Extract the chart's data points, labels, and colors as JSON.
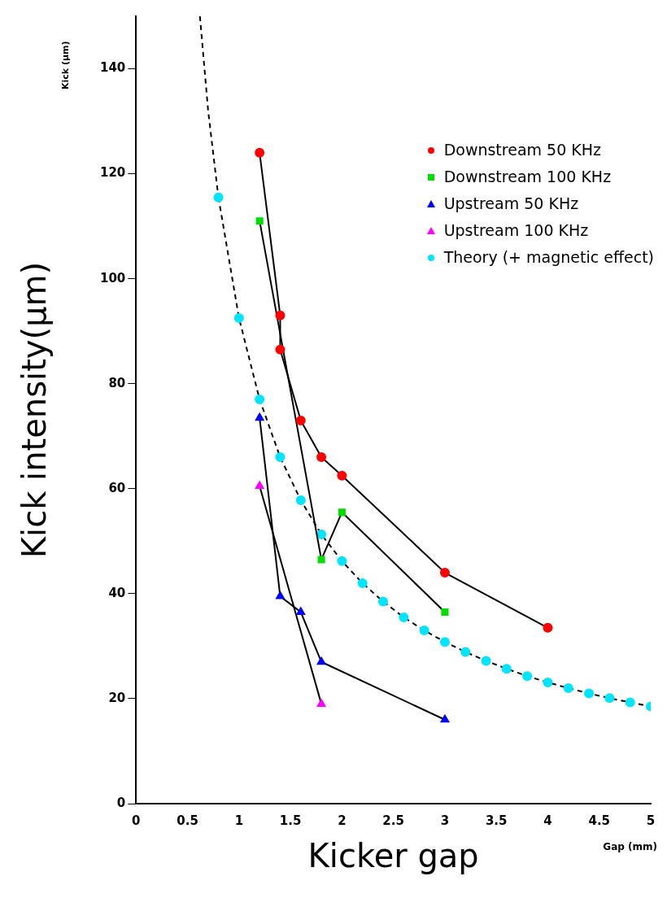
{
  "chart_data": {
    "type": "line",
    "xlabel": "Kicker gap",
    "ylabel": "Kick intensity(μm)",
    "annotations": [
      "Kick (μm)",
      "Gap (mm)"
    ],
    "xlim": [
      0,
      5
    ],
    "xticks": [
      0,
      0.5,
      1,
      1.5,
      2,
      2.5,
      3,
      3.5,
      4,
      4.5,
      5
    ],
    "ylim": [
      0,
      150
    ],
    "yticks": [
      0,
      20,
      40,
      60,
      80,
      100,
      120,
      140
    ],
    "grid": false,
    "legend": "top right",
    "series": [
      {
        "name": "Downstream 50 KHz",
        "color": "#ff0000",
        "marker": "circle",
        "line_style": "solid",
        "x": [
          1.2,
          1.4,
          1.4,
          1.6,
          1.8,
          2,
          3,
          4
        ],
        "values": [
          124,
          93,
          86.5,
          73,
          66,
          62.5,
          44,
          33.5
        ]
      },
      {
        "name": "Downstream 100 KHz",
        "color": "#00dd00",
        "marker": "square",
        "line_style": "solid",
        "x": [
          1.2,
          1.8,
          2,
          3
        ],
        "values": [
          111,
          46.5,
          55.5,
          36.5
        ]
      },
      {
        "name": "Upstream 50 KHz",
        "color": "#0000ff",
        "marker": "triangle",
        "line_style": "solid",
        "x": [
          1.2,
          1.4,
          1.6,
          1.8,
          3
        ],
        "values": [
          73.5,
          39.5,
          36.5,
          27,
          16
        ]
      },
      {
        "name": "Upstream 100 KHz",
        "color": "#ff00ff",
        "marker": "triangle",
        "line_style": "solid",
        "x": [
          1.2,
          1.8
        ],
        "values": [
          60.5,
          19
        ]
      },
      {
        "name": "Theory (+ magnetic effect)",
        "color": "#00e5ff",
        "marker": "circle",
        "line_style": "dashed",
        "x": [
          0.8,
          1,
          1.2,
          1.4,
          1.6,
          1.8,
          2,
          2.2,
          2.4,
          2.6,
          2.8,
          3,
          3.2,
          3.4,
          3.6,
          3.8,
          4,
          4.2,
          4.4,
          4.6,
          4.8,
          5
        ],
        "values": [
          115.5,
          92.5,
          77,
          66,
          57.8,
          51.3,
          46.2,
          42,
          38.5,
          35.5,
          33,
          30.8,
          28.9,
          27.2,
          25.7,
          24.3,
          23.1,
          22,
          21,
          20.1,
          19.3,
          18.5
        ]
      },
      {
        "color": "#000000",
        "marker": "none",
        "line_style": "dashed",
        "x": [
          0.62,
          0.7,
          0.8
        ],
        "values": [
          150,
          132,
          115.5
        ]
      }
    ]
  }
}
